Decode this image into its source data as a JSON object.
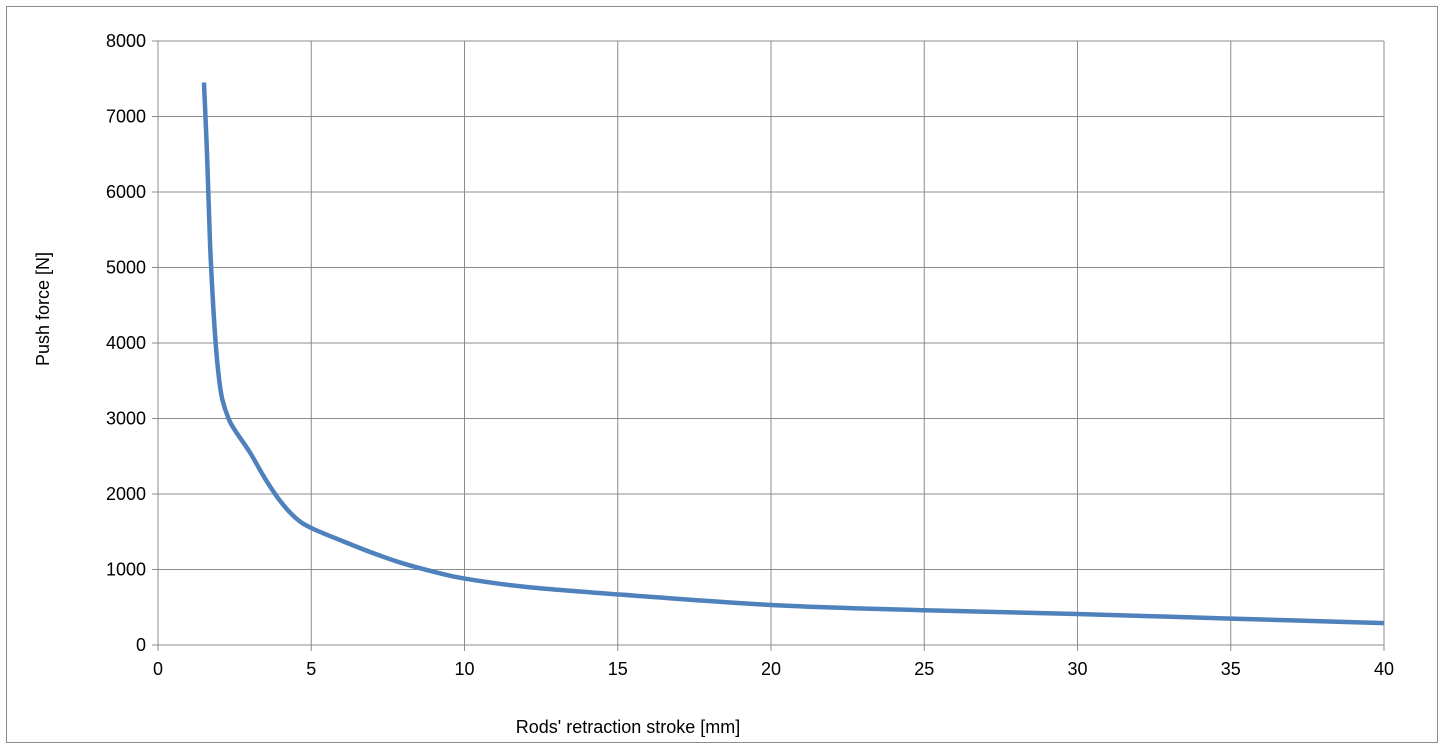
{
  "chart_data": {
    "type": "line",
    "title": "",
    "xlabel": "Rods' retraction stroke  [mm]",
    "ylabel": "Push force [N]",
    "xlim": [
      0,
      40
    ],
    "ylim": [
      0,
      8000
    ],
    "x_ticks": [
      "0",
      "5",
      "10",
      "15",
      "20",
      "25",
      "30",
      "35",
      "40"
    ],
    "y_ticks": [
      "0",
      "1000",
      "2000",
      "3000",
      "4000",
      "5000",
      "6000",
      "7000",
      "8000"
    ],
    "grid": true,
    "legend": "none",
    "series": [
      {
        "color": "#4f81bd",
        "x": [
          1.5,
          1.6,
          1.7,
          1.8,
          1.9,
          2.0,
          2.1,
          2.3,
          2.5,
          3.0,
          3.5,
          4.0,
          4.5,
          5.0,
          6.0,
          7.0,
          8.0,
          9.0,
          10.0,
          12.0,
          15.0,
          20.0,
          25.0,
          30.0,
          35.0,
          40.0
        ],
        "y": [
          7450,
          6500,
          5300,
          4500,
          3900,
          3500,
          3250,
          3000,
          2850,
          2550,
          2200,
          1900,
          1680,
          1550,
          1380,
          1220,
          1080,
          970,
          880,
          770,
          670,
          530,
          460,
          410,
          350,
          290
        ]
      }
    ]
  }
}
